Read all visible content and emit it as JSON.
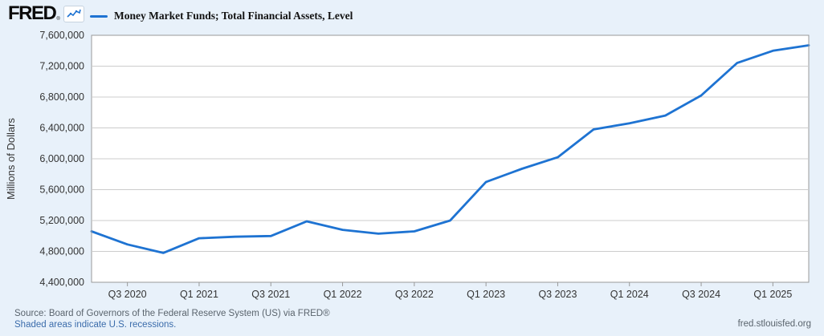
{
  "brand": {
    "logo_text": "FRED",
    "registered_mark": "®",
    "logo_icon": "sparkline-chart-icon"
  },
  "legend": {
    "series_label": "Money Market Funds; Total Financial Assets, Level",
    "swatch_color": "#1e73d2"
  },
  "chart_data": {
    "type": "line",
    "title": "Money Market Funds; Total Financial Assets, Level",
    "ylabel": "Millions of Dollars",
    "x": [
      "2020-Q2",
      "2020-Q3",
      "2020-Q4",
      "2021-Q1",
      "2021-Q2",
      "2021-Q3",
      "2021-Q4",
      "2022-Q1",
      "2022-Q2",
      "2022-Q3",
      "2022-Q4",
      "2023-Q1",
      "2023-Q2",
      "2023-Q3",
      "2023-Q4",
      "2024-Q1",
      "2024-Q2",
      "2024-Q3",
      "2024-Q4",
      "2025-Q1",
      "2025-Q2"
    ],
    "values": [
      5060000,
      4890000,
      4780000,
      4970000,
      4990000,
      5000000,
      5190000,
      5080000,
      5030000,
      5060000,
      5200000,
      5700000,
      5870000,
      6020000,
      6380000,
      6460000,
      6560000,
      6820000,
      7240000,
      7400000,
      7470000
    ],
    "ylim": [
      4400000,
      7600000
    ],
    "ytick_step": 400000,
    "ytick_labels": [
      "7,600,000",
      "7,200,000",
      "6,800,000",
      "6,400,000",
      "6,000,000",
      "5,600,000",
      "5,200,000",
      "4,800,000",
      "4,400,000"
    ],
    "xtick_labels": [
      "Q3 2020",
      "Q1 2021",
      "Q3 2021",
      "Q1 2022",
      "Q3 2022",
      "Q1 2023",
      "Q3 2023",
      "Q1 2024",
      "Q3 2024",
      "Q1 2025"
    ],
    "xtick_indices": [
      1,
      3,
      5,
      7,
      9,
      11,
      13,
      15,
      17,
      19
    ],
    "grid": true,
    "legend_position": "top-left"
  },
  "footer": {
    "source_line": "Source: Board of Governors of the Federal Reserve System (US) via FRED®",
    "recession_note": "Shaded areas indicate U.S. recessions.",
    "site_url": "fred.stlouisfed.org"
  },
  "colors": {
    "background": "#e8f1fa",
    "plot_bg": "#ffffff",
    "grid": "#cccccc",
    "plot_border": "#999999",
    "axis_text": "#333333",
    "line": "#1e73d2",
    "source_text": "#5a646d",
    "link": "#3b6cab"
  }
}
